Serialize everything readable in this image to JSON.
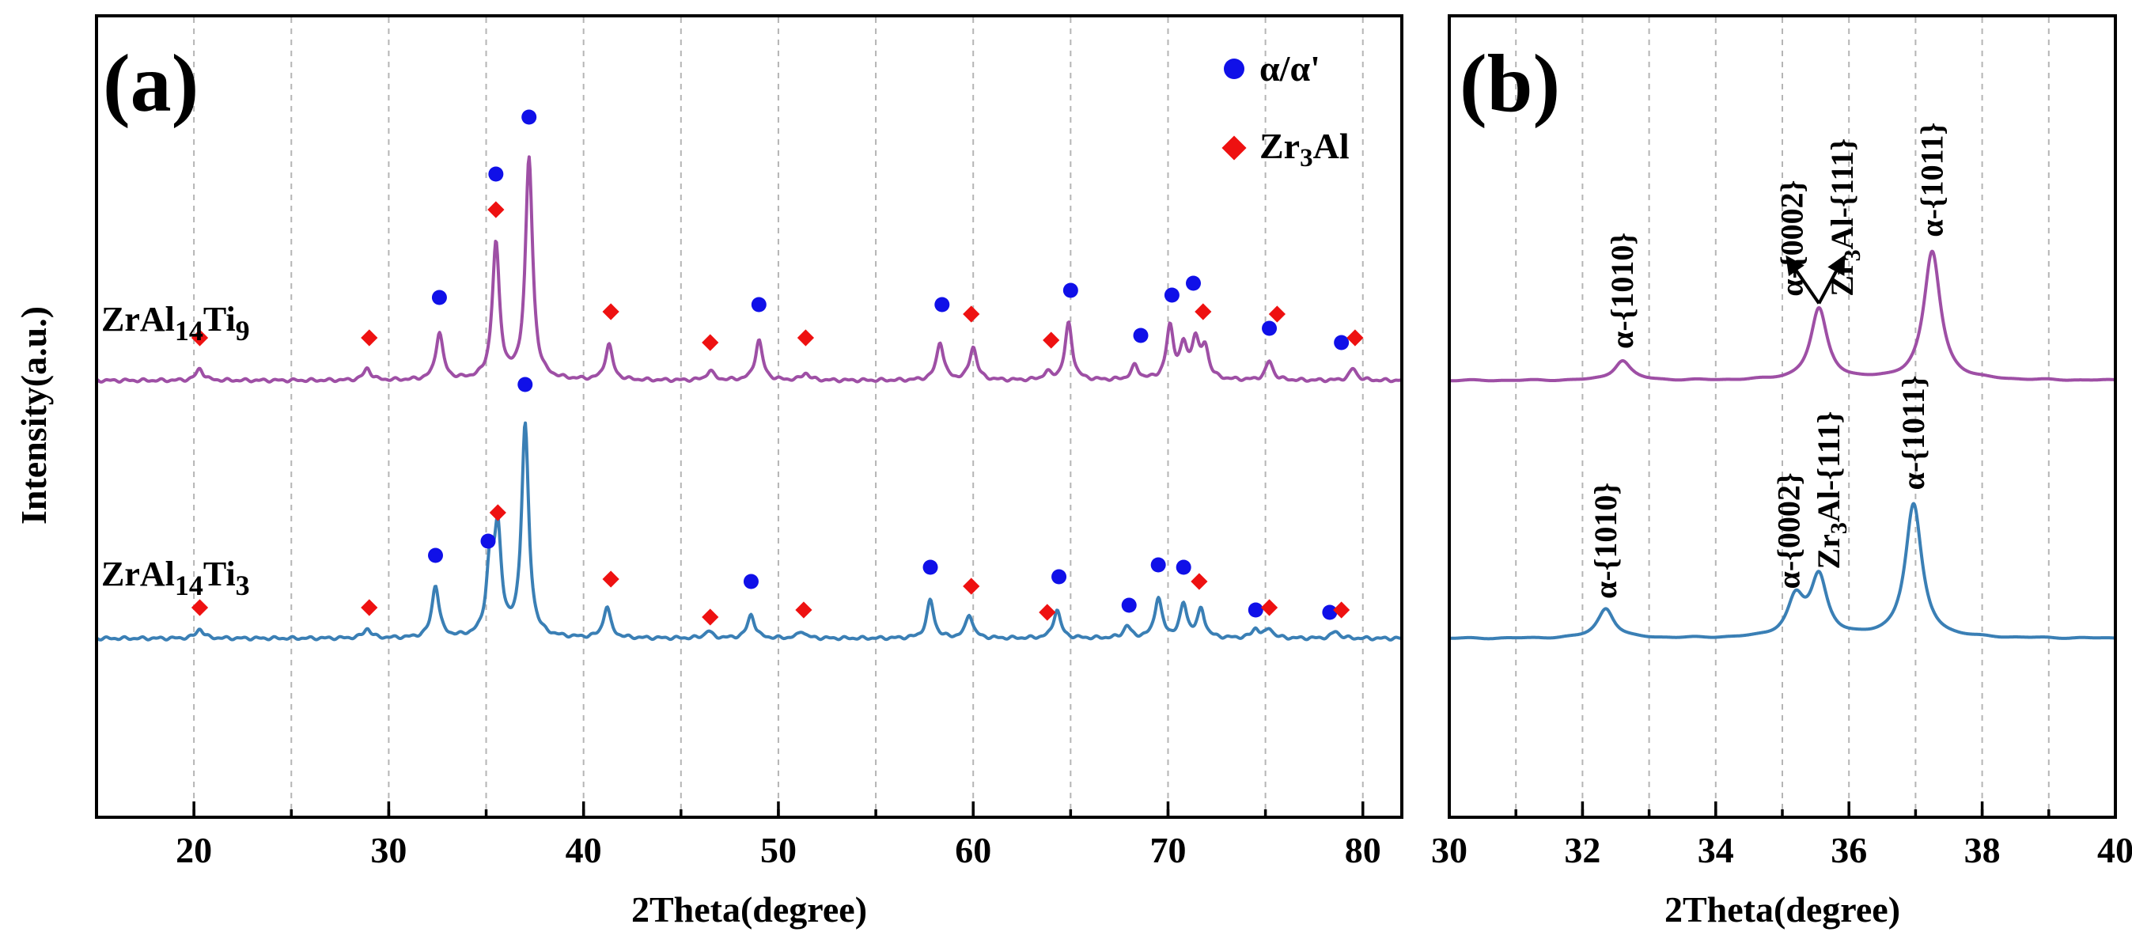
{
  "chart_data": [
    {
      "type": "line",
      "panel_label": "(a)",
      "xlabel": "2Theta(degree)",
      "ylabel": "Intensity(a.u.)",
      "xlim": [
        15,
        82
      ],
      "xticks": [
        20,
        30,
        40,
        50,
        60,
        70,
        80
      ],
      "xtick_labels": [
        "20",
        "30",
        "40",
        "50",
        "60",
        "70",
        "80"
      ],
      "grid": "vertical dashed",
      "legend": [
        {
          "marker": "circle",
          "color": "#1010e8",
          "label": "α/α'"
        },
        {
          "marker": "diamond",
          "color": "#ee1111",
          "label_main": "Zr",
          "label_sub": "3",
          "label_tail": "Al"
        }
      ],
      "series": [
        {
          "name": "ZrAl14Ti9",
          "label_main": "ZrAl",
          "label_sub1": "14",
          "label_mid": "Ti",
          "label_sub2": "9",
          "color": "#9e4fa5",
          "baseline": 0.0,
          "peaks": [
            [
              20.3,
              0.05
            ],
            [
              28.9,
              0.05
            ],
            [
              32.6,
              0.2
            ],
            [
              35.5,
              0.57
            ],
            [
              37.2,
              0.93
            ],
            [
              41.3,
              0.15
            ],
            [
              46.5,
              0.04
            ],
            [
              49.0,
              0.17
            ],
            [
              51.4,
              0.03
            ],
            [
              58.3,
              0.16
            ],
            [
              60.0,
              0.14
            ],
            [
              63.8,
              0.03
            ],
            [
              64.9,
              0.24
            ],
            [
              68.3,
              0.06
            ],
            [
              70.1,
              0.22
            ],
            [
              70.8,
              0.13
            ],
            [
              71.4,
              0.16
            ],
            [
              71.9,
              0.13
            ],
            [
              75.2,
              0.08
            ],
            [
              79.5,
              0.05
            ]
          ],
          "alpha_markers": [
            [
              32.6,
              0.35
            ],
            [
              35.5,
              0.87
            ],
            [
              37.2,
              1.11
            ],
            [
              49.0,
              0.32
            ],
            [
              58.4,
              0.32
            ],
            [
              65.0,
              0.38
            ],
            [
              68.6,
              0.19
            ],
            [
              70.2,
              0.36
            ],
            [
              71.3,
              0.41
            ],
            [
              75.2,
              0.22
            ],
            [
              78.9,
              0.16
            ]
          ],
          "zr3al_markers": [
            [
              20.3,
              0.18
            ],
            [
              29.0,
              0.18
            ],
            [
              35.5,
              0.72
            ],
            [
              41.4,
              0.29
            ],
            [
              46.5,
              0.16
            ],
            [
              51.4,
              0.18
            ],
            [
              59.9,
              0.28
            ],
            [
              64.0,
              0.17
            ],
            [
              71.8,
              0.29
            ],
            [
              75.6,
              0.28
            ],
            [
              79.6,
              0.18
            ]
          ]
        },
        {
          "name": "ZrAl14Ti3",
          "label_main": "ZrAl",
          "label_sub1": "14",
          "label_mid": "Ti",
          "label_sub2": "3",
          "color": "#3a7fb5",
          "baseline": -1.0,
          "peaks": [
            [
              20.3,
              0.04
            ],
            [
              28.9,
              0.04
            ],
            [
              32.4,
              0.22
            ],
            [
              35.2,
              0.3
            ],
            [
              35.6,
              0.42
            ],
            [
              37.0,
              0.89
            ],
            [
              41.2,
              0.13
            ],
            [
              46.4,
              0.03
            ],
            [
              48.6,
              0.1
            ],
            [
              51.2,
              0.03
            ],
            [
              57.8,
              0.16
            ],
            [
              59.8,
              0.1
            ],
            [
              64.3,
              0.12
            ],
            [
              67.9,
              0.05
            ],
            [
              69.5,
              0.17
            ],
            [
              70.8,
              0.14
            ],
            [
              71.7,
              0.12
            ],
            [
              74.5,
              0.04
            ],
            [
              75.2,
              0.04
            ],
            [
              78.6,
              0.03
            ]
          ],
          "alpha_markers": [
            [
              32.4,
              0.35
            ],
            [
              35.1,
              0.41
            ],
            [
              37.0,
              1.07
            ],
            [
              48.6,
              0.24
            ],
            [
              57.8,
              0.3
            ],
            [
              64.4,
              0.26
            ],
            [
              68.0,
              0.14
            ],
            [
              69.5,
              0.31
            ],
            [
              70.8,
              0.3
            ],
            [
              74.5,
              0.12
            ],
            [
              78.3,
              0.11
            ]
          ],
          "zr3al_markers": [
            [
              20.3,
              0.13
            ],
            [
              29.0,
              0.13
            ],
            [
              35.6,
              0.53
            ],
            [
              41.4,
              0.25
            ],
            [
              46.5,
              0.09
            ],
            [
              51.3,
              0.12
            ],
            [
              59.9,
              0.22
            ],
            [
              63.8,
              0.11
            ],
            [
              71.6,
              0.24
            ],
            [
              75.2,
              0.13
            ],
            [
              78.9,
              0.12
            ]
          ]
        }
      ]
    },
    {
      "type": "line",
      "panel_label": "(b)",
      "xlabel": "2Theta(degree)",
      "xlim": [
        30,
        40
      ],
      "xticks": [
        30,
        32,
        34,
        36,
        38,
        40
      ],
      "xtick_labels": [
        "30",
        "32",
        "34",
        "36",
        "38",
        "40"
      ],
      "grid": "vertical dashed",
      "series": [
        {
          "name": "ZrAl14Ti9",
          "color": "#9e4fa5",
          "baseline": 0.0,
          "peaks": [
            [
              32.6,
              0.2
            ],
            [
              35.55,
              0.72
            ],
            [
              37.25,
              1.3
            ]
          ],
          "annotations": [
            {
              "text": "α-{1010}",
              "x": 32.6,
              "y": 0.32
            },
            {
              "text": "α-{0002}",
              "x": 35.15,
              "y": 0.85
            },
            {
              "text": "Zr3Al-{111}",
              "main": "Zr",
              "sub": "3",
              "tail": "Al-{111}",
              "x": 35.9,
              "y": 0.85
            },
            {
              "text": "α-{1011}",
              "x": 37.25,
              "y": 1.45
            }
          ],
          "arrows": [
            {
              "from": [
                35.55,
                0.78
              ],
              "to": [
                35.1,
                1.22
              ]
            },
            {
              "from": [
                35.55,
                0.78
              ],
              "to": [
                35.9,
                1.22
              ]
            }
          ]
        },
        {
          "name": "ZrAl14Ti3",
          "color": "#3a7fb5",
          "baseline": -1.0,
          "peaks": [
            [
              32.35,
              0.3
            ],
            [
              35.2,
              0.38
            ],
            [
              35.55,
              0.6
            ],
            [
              36.97,
              1.35
            ]
          ],
          "annotations": [
            {
              "text": "α-{1010}",
              "x": 32.35,
              "y": 0.4
            },
            {
              "text": "α-{0002}",
              "x": 35.1,
              "y": 0.5
            },
            {
              "text": "Zr3Al-{111}",
              "main": "Zr",
              "sub": "3",
              "tail": "Al-{111}",
              "x": 35.7,
              "y": 0.7
            },
            {
              "text": "α-{1011}",
              "x": 36.97,
              "y": 1.5
            }
          ]
        }
      ]
    }
  ]
}
